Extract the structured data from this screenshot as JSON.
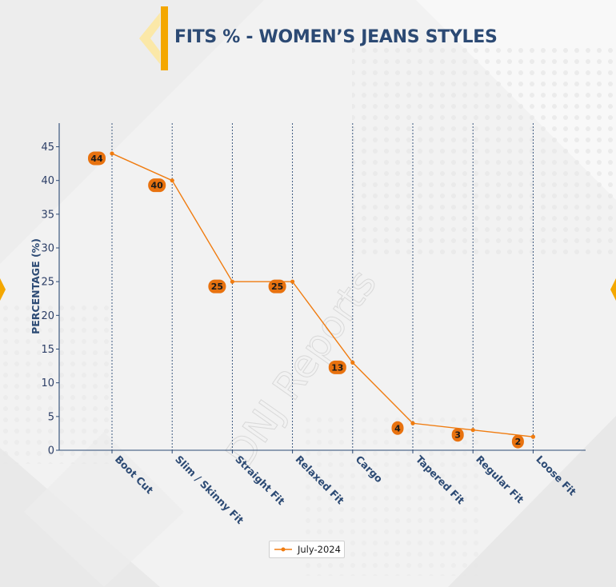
{
  "page": {
    "title": "FITS % - WOMEN’S JEANS STYLES",
    "watermark": "DNJ Reports",
    "colors": {
      "title": "#2c4a74",
      "accent": "#f4a700",
      "line": "#f07c10",
      "label_bg": "#e8720f",
      "axis": "#2c4a74",
      "grid": "#2c4a74"
    }
  },
  "chart_data": {
    "type": "line",
    "title": "FITS % - WOMEN’S JEANS STYLES",
    "xlabel": "",
    "ylabel": "PERCENTAGE (%)",
    "ylim": [
      0,
      48
    ],
    "yticks": [
      0,
      5,
      10,
      15,
      20,
      25,
      30,
      35,
      40,
      45
    ],
    "categories": [
      "Boot Cut",
      "Slim / Skinny Fit",
      "Straight Fit",
      "Relaxed Fit",
      "Cargo",
      "Tapered Fit",
      "Regular Fit",
      "Loose Fit"
    ],
    "series": [
      {
        "name": "July-2024",
        "values": [
          44,
          40,
          25,
          25,
          13,
          4,
          3,
          2
        ]
      }
    ],
    "grid": "vertical dashed",
    "legend": "bottom-center"
  }
}
